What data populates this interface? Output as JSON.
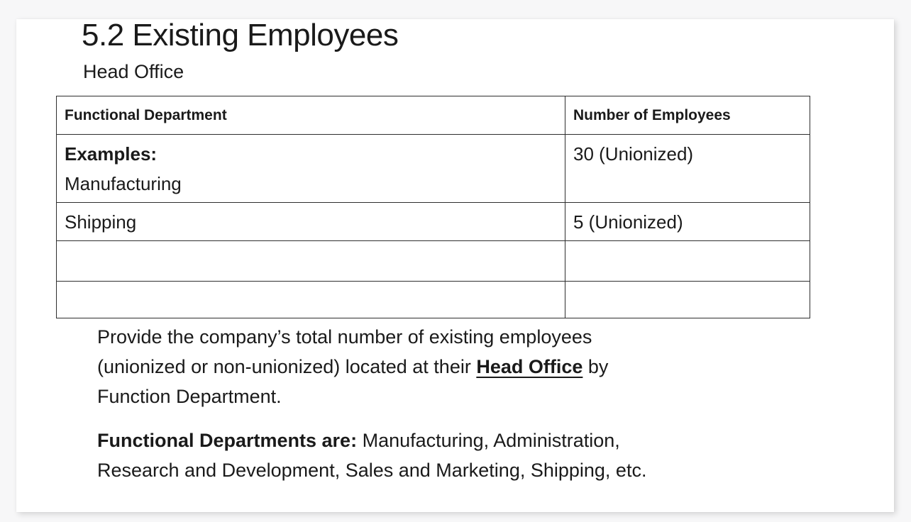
{
  "page": {
    "title": "5.2 Existing Employees",
    "subtitle": "Head Office"
  },
  "table": {
    "headers": [
      "Functional Department",
      "Number of Employees"
    ],
    "rows": [
      {
        "department_lines": [
          "Examples:",
          "Manufacturing"
        ],
        "employees": "30 (Unionized)"
      },
      {
        "department": "Shipping",
        "employees": "5 (Unionized)"
      },
      {
        "department": "",
        "employees": ""
      },
      {
        "department": "",
        "employees": ""
      }
    ]
  },
  "paragraph1": {
    "line1": "Provide the company’s total number of existing employees",
    "line2_prefix": "(unionized or non-unionized) located at their ",
    "line2_emphasis": "Head Office",
    "line2_suffix": " by",
    "line3": "Function Department."
  },
  "paragraph2": {
    "lead": "Functional Departments are:",
    "line1_rest": " Manufacturing, Administration,",
    "line2": "Research and Development, Sales and Marketing, Shipping, etc."
  },
  "colors": {
    "canvas_background": "#f7f7f8",
    "page_background": "#ffffff",
    "text": "#1a1a1a",
    "table_border": "#2e2e2e"
  }
}
